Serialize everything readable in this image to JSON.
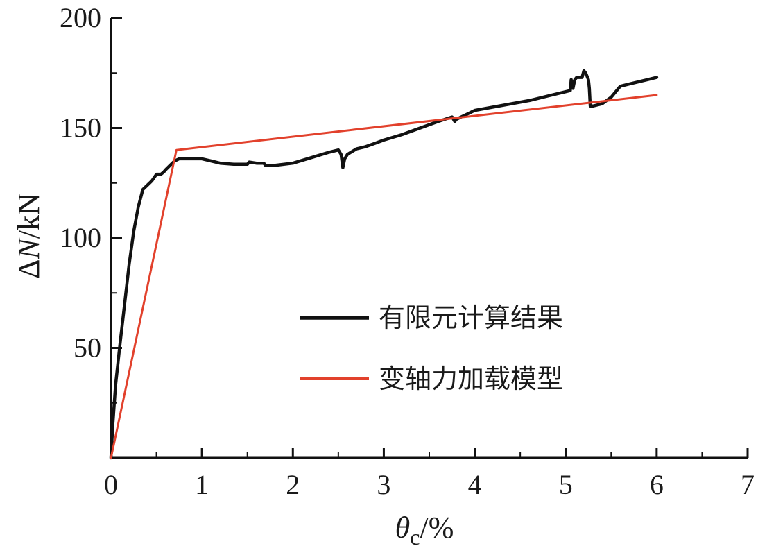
{
  "chart_data": {
    "type": "line",
    "xlabel": {
      "symbol": "θ",
      "subscript": "c",
      "unit": "/%"
    },
    "ylabel": {
      "prefix": "Δ",
      "symbol": "N",
      "unit": "/kN"
    },
    "xlim": [
      0,
      7
    ],
    "ylim": [
      0,
      200
    ],
    "x_ticks": [
      0,
      1,
      2,
      3,
      4,
      5,
      6,
      7
    ],
    "x_tick_labels": [
      "0",
      "1",
      "2",
      "3",
      "4",
      "5",
      "6",
      "7"
    ],
    "y_ticks": [
      50,
      100,
      150,
      200
    ],
    "y_tick_labels": [
      "50",
      "100",
      "150",
      "200"
    ],
    "grid": false,
    "legend_position": "center-right",
    "series": [
      {
        "name": "有限元计算结果",
        "color": "#111111",
        "x": [
          0,
          0.02,
          0.05,
          0.1,
          0.15,
          0.2,
          0.25,
          0.3,
          0.35,
          0.4,
          0.45,
          0.5,
          0.55,
          0.58,
          0.6,
          0.65,
          0.7,
          0.75,
          0.8,
          0.9,
          1.0,
          1.1,
          1.2,
          1.35,
          1.5,
          1.52,
          1.6,
          1.68,
          1.7,
          1.8,
          2.0,
          2.2,
          2.4,
          2.5,
          2.53,
          2.55,
          2.57,
          2.6,
          2.7,
          2.8,
          2.9,
          3.0,
          3.2,
          3.4,
          3.6,
          3.75,
          3.78,
          3.8,
          3.9,
          4.0,
          4.2,
          4.4,
          4.6,
          4.8,
          5.0,
          5.05,
          5.06,
          5.08,
          5.1,
          5.12,
          5.18,
          5.2,
          5.22,
          5.25,
          5.26,
          5.27,
          5.3,
          5.4,
          5.5,
          5.6,
          5.7,
          5.8,
          5.9,
          6.0
        ],
        "y": [
          0,
          15,
          33,
          52,
          70,
          88,
          103,
          114,
          122,
          124,
          126,
          129,
          129,
          130,
          131,
          133,
          135,
          136,
          136,
          136,
          136,
          135,
          134,
          133.5,
          133.5,
          134.5,
          134,
          134,
          133,
          133,
          134,
          136.5,
          139,
          140,
          138,
          132,
          136,
          138,
          140.5,
          141.5,
          143,
          144.5,
          147,
          150,
          153,
          155,
          153,
          154,
          156,
          158,
          159.5,
          161,
          162.5,
          164.5,
          166.5,
          167,
          172,
          168,
          172,
          173,
          173,
          176,
          175,
          172,
          168,
          160,
          160,
          161,
          164,
          169,
          170,
          171,
          172,
          173
        ]
      },
      {
        "name": "变轴力加载模型",
        "color": "#e2412c",
        "x": [
          0,
          0.72,
          6.0
        ],
        "y": [
          0,
          140,
          165
        ]
      }
    ]
  }
}
